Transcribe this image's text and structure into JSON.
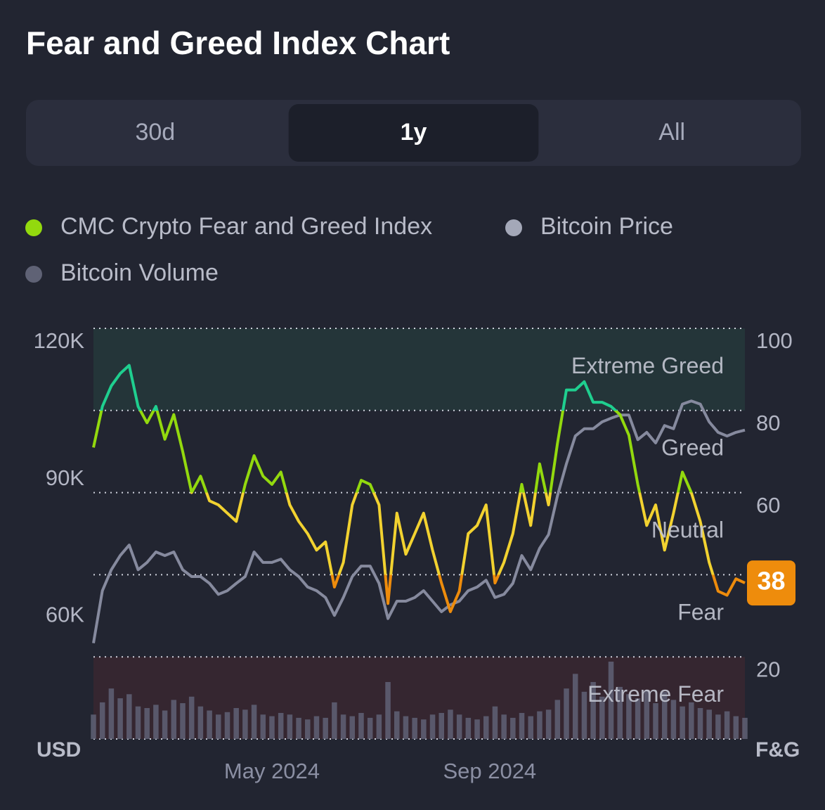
{
  "title": "Fear and Greed Index Chart",
  "tabs": [
    "30d",
    "1y",
    "All"
  ],
  "selected_tab": 1,
  "chart_data": {
    "type": "line",
    "y_label": "USD",
    "y2_label": "F&G",
    "x": [
      0,
      5,
      10,
      15,
      20,
      25,
      30,
      35,
      40,
      45,
      50,
      55,
      60,
      65,
      70,
      75,
      80,
      85,
      90,
      95,
      100,
      105,
      110,
      115,
      120,
      125,
      130,
      135,
      140,
      145,
      150,
      155,
      160,
      165,
      170,
      175,
      180,
      185,
      190,
      195,
      200,
      205,
      210,
      215,
      220,
      225,
      230,
      235,
      240,
      245,
      250,
      255,
      260,
      265,
      270,
      275,
      280,
      285,
      290,
      295,
      300,
      305,
      310,
      315,
      320,
      325,
      330,
      335,
      340,
      345,
      350,
      355,
      360,
      365
    ],
    "xlim": [
      0,
      365
    ],
    "xticks": [
      {
        "value": 100,
        "label": "May 2024"
      },
      {
        "value": 222,
        "label": "Sep 2024"
      }
    ],
    "ylim": [
      30000,
      120000
    ],
    "yticks": [
      {
        "value": 60000,
        "label": "60K"
      },
      {
        "value": 90000,
        "label": "90K"
      },
      {
        "value": 120000,
        "label": "120K"
      }
    ],
    "y2lim": [
      0,
      100
    ],
    "y2ticks": [
      20,
      40,
      60,
      80,
      100
    ],
    "grid": true,
    "zones": [
      {
        "label": "Extreme Greed",
        "range": [
          80,
          100
        ],
        "line_color": "#1fcf8f",
        "band_color": "#243539"
      },
      {
        "label": "Greed",
        "range": [
          60,
          80
        ],
        "line_color": "#93d90e"
      },
      {
        "label": "Neutral",
        "range": [
          40,
          60
        ],
        "line_color": "#f2d230"
      },
      {
        "label": "Fear",
        "range": [
          20,
          40
        ],
        "line_color": "#ee8c0c"
      },
      {
        "label": "Extreme Fear",
        "range": [
          0,
          20
        ],
        "line_color": "#ea3943",
        "band_color": "#352630"
      }
    ],
    "series": [
      {
        "name": "CMC Crypto Fear and Greed Index",
        "color": "#93d90e",
        "type": "line",
        "axis": "y2",
        "values": [
          71,
          81,
          86,
          89,
          91,
          81,
          77,
          81,
          73,
          79,
          70,
          60,
          64,
          58,
          57,
          55,
          53,
          62,
          69,
          64,
          62,
          65,
          57,
          53,
          50,
          46,
          48,
          37,
          43,
          57,
          63,
          62,
          57,
          33,
          55,
          45,
          50,
          55,
          46,
          38,
          31,
          36,
          50,
          52,
          57,
          38,
          43,
          50,
          62,
          52,
          67,
          57,
          72,
          85,
          85,
          87,
          82,
          82,
          81,
          79,
          74,
          62,
          52,
          57,
          46,
          55,
          65,
          60,
          53,
          43,
          36,
          35,
          39,
          38
        ]
      },
      {
        "name": "Bitcoin Price",
        "color": "#a4a8b8",
        "type": "line",
        "axis": "y",
        "values": [
          51000,
          62500,
          67100,
          70200,
          72500,
          67100,
          68700,
          71000,
          70200,
          71000,
          67100,
          65600,
          65600,
          64100,
          61700,
          62500,
          64100,
          65600,
          71000,
          68700,
          68700,
          69400,
          67100,
          65600,
          63300,
          62500,
          61000,
          57100,
          61000,
          65600,
          67900,
          67900,
          64100,
          56400,
          60200,
          60200,
          61000,
          62500,
          60200,
          57900,
          59400,
          60200,
          62500,
          63300,
          64800,
          61000,
          61700,
          64100,
          70200,
          67100,
          71800,
          74800,
          83300,
          90300,
          96400,
          98000,
          98000,
          99500,
          100300,
          101000,
          101000,
          95600,
          97200,
          94900,
          98700,
          98000,
          103400,
          104100,
          103400,
          99500,
          97200,
          96400,
          97200,
          97700
        ]
      },
      {
        "name": "Bitcoin Volume",
        "color": "#5f6275",
        "type": "bar",
        "values": [
          30,
          45,
          62,
          50,
          55,
          40,
          38,
          42,
          35,
          48,
          44,
          52,
          40,
          35,
          30,
          33,
          38,
          36,
          42,
          30,
          28,
          32,
          30,
          26,
          24,
          28,
          26,
          45,
          30,
          28,
          32,
          26,
          30,
          70,
          34,
          28,
          26,
          24,
          30,
          32,
          36,
          30,
          26,
          24,
          28,
          40,
          30,
          26,
          32,
          28,
          34,
          36,
          48,
          62,
          80,
          58,
          70,
          52,
          95,
          64,
          55,
          50,
          60,
          44,
          58,
          48,
          40,
          45,
          38,
          36,
          30,
          34,
          28,
          26
        ]
      }
    ]
  }
}
